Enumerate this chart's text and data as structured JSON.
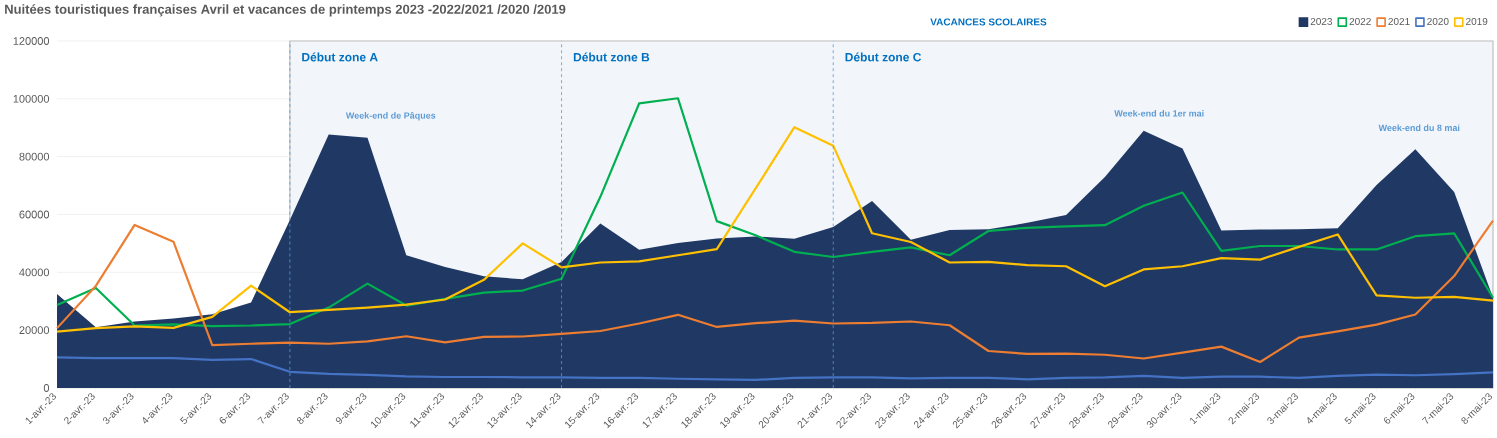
{
  "chart_data": {
    "type": "line",
    "title": "Nuitées touristiques françaises Avril  et vacances de printemps 2023 -2022/2021 /2020 /2019",
    "categories": [
      "1-avr.-23",
      "2-avr.-23",
      "3-avr.-23",
      "4-avr.-23",
      "5-avr.-23",
      "6-avr.-23",
      "7-avr.-23",
      "8-avr.-23",
      "9-avr.-23",
      "10-avr.-23",
      "11-avr.-23",
      "12-avr.-23",
      "13-avr.-23",
      "14-avr.-23",
      "15-avr.-23",
      "16-avr.-23",
      "17-avr.-23",
      "18-avr.-23",
      "19-avr.-23",
      "20-avr.-23",
      "21-avr.-23",
      "22-avr.-23",
      "23-avr.-23",
      "24-avr.-23",
      "25-avr.-23",
      "26-avr.-23",
      "27-avr.-23",
      "28-avr.-23",
      "29-avr.-23",
      "30-avr.-23",
      "1-mai-23",
      "2-mai-23",
      "3-mai-23",
      "4-mai-23",
      "5-mai-23",
      "6-mai-23",
      "7-mai-23",
      "8-mai-23"
    ],
    "series": [
      {
        "name": "2023",
        "type": "area",
        "color": "#203864",
        "values": [
          32500,
          21000,
          23000,
          24000,
          25500,
          29600,
          58100,
          87700,
          86500,
          45900,
          41800,
          38600,
          37600,
          43600,
          56900,
          47800,
          50100,
          51700,
          52400,
          51600,
          55700,
          64700,
          51300,
          54600,
          54900,
          57100,
          59800,
          73000,
          89000,
          82800,
          54500,
          54800,
          54900,
          55200,
          70200,
          82600,
          67800,
          31200
        ]
      },
      {
        "name": "2022",
        "color": "#00b050",
        "values": [
          28700,
          34600,
          21600,
          22000,
          21400,
          21600,
          22100,
          27800,
          36100,
          28500,
          30800,
          33000,
          33700,
          37800,
          66100,
          98400,
          100200,
          57700,
          52800,
          47100,
          45300,
          47100,
          48600,
          45900,
          54300,
          55400,
          55900,
          56300,
          63000,
          67600,
          47400,
          49100,
          49100,
          47900,
          47900,
          52500,
          53500,
          31200
        ]
      },
      {
        "name": "2021",
        "color": "#ed7d31",
        "values": [
          20700,
          35300,
          56400,
          50600,
          14800,
          15300,
          15700,
          15300,
          16100,
          17900,
          15800,
          17700,
          17800,
          18700,
          19700,
          22300,
          25300,
          21100,
          22400,
          23300,
          22300,
          22500,
          23000,
          21700,
          12800,
          11800,
          11900,
          11500,
          10200,
          12200,
          14300,
          9000,
          17400,
          19600,
          21900,
          25400,
          38700,
          57900
        ]
      },
      {
        "name": "2020",
        "color": "#4472c4",
        "values": [
          10600,
          10300,
          10300,
          10300,
          9700,
          10000,
          5600,
          4900,
          4500,
          4000,
          3800,
          3800,
          3700,
          3700,
          3500,
          3500,
          3200,
          3000,
          2800,
          3500,
          3700,
          3700,
          3300,
          3500,
          3500,
          3000,
          3500,
          3700,
          4200,
          3500,
          3900,
          3900,
          3500,
          4200,
          4600,
          4400,
          4800,
          5400
        ]
      },
      {
        "name": "2019",
        "color": "#ffc000",
        "values": [
          19500,
          20700,
          21300,
          20800,
          24600,
          35400,
          26200,
          27000,
          27800,
          28800,
          30600,
          37400,
          50000,
          41700,
          43400,
          43800,
          45900,
          48000,
          69000,
          90200,
          83800,
          53500,
          50500,
          43400,
          43600,
          42500,
          42100,
          35200,
          41000,
          42100,
          44900,
          44400,
          48800,
          53100,
          32000,
          31200,
          31500,
          30200
        ]
      }
    ],
    "ylim": [
      0,
      120000
    ],
    "yticks": [
      0,
      20000,
      40000,
      60000,
      80000,
      100000,
      120000
    ],
    "grid": "y",
    "legend": "top right",
    "bands": [
      {
        "axis": "x",
        "from": "7-avr.-23",
        "to": "8-mai-23",
        "label": "VACANCES SCOLAIRES",
        "color": "#f2f5fa"
      }
    ],
    "ref_lines": [
      {
        "axis": "x",
        "value": "7-avr.-23",
        "label": "Début zone A",
        "color": "#5b9bd5",
        "line_style": "dashed"
      },
      {
        "axis": "x",
        "value": "14-avr.-23",
        "label": "Début zone B",
        "color": "#5b9bd5",
        "line_style": "dashed"
      },
      {
        "axis": "x",
        "value": "21-avr.-23",
        "label": "Début zone C",
        "color": "#5b9bd5",
        "line_style": "dashed"
      }
    ],
    "annotations": [
      "Week-end de Pâques",
      "Week-end du 1er mai",
      "Week-end du 8 mai"
    ]
  }
}
